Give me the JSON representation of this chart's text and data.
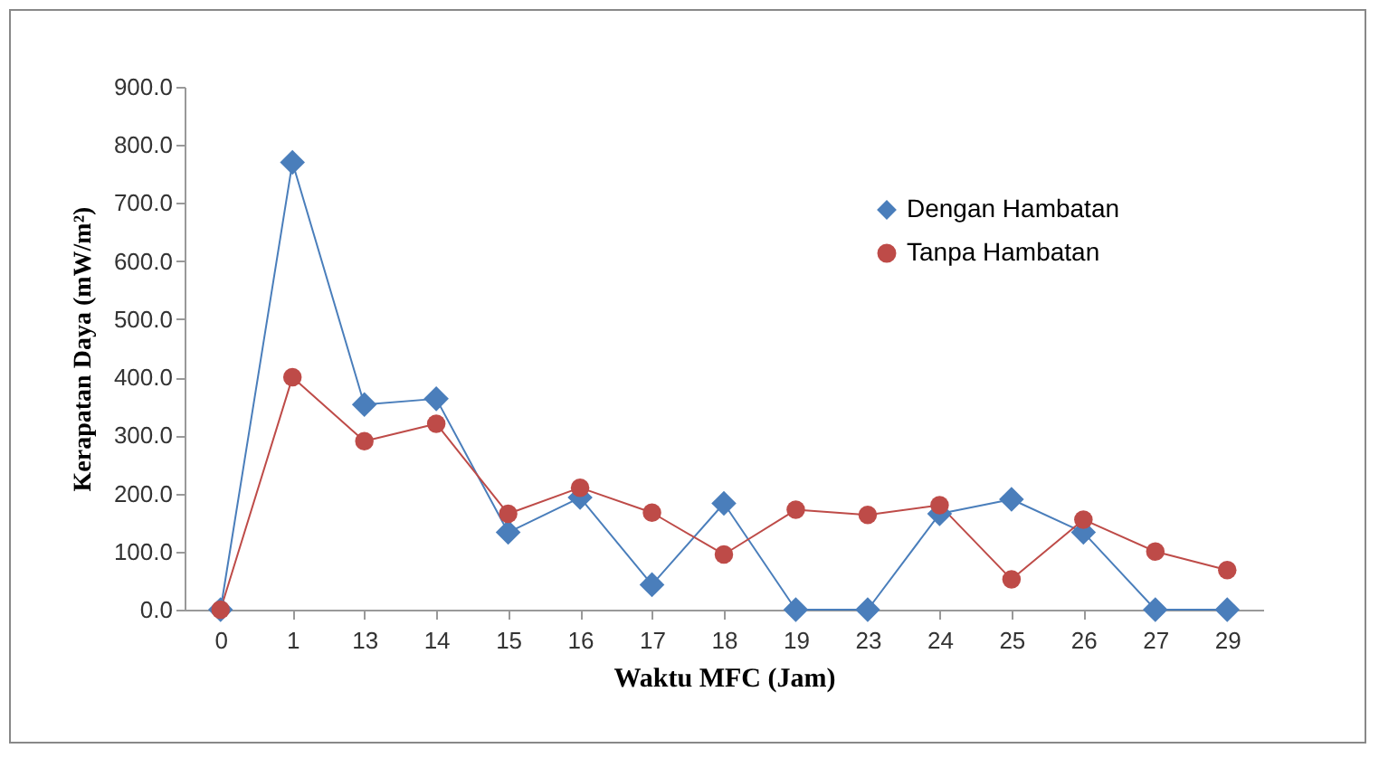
{
  "chart_data": {
    "type": "line",
    "xlabel": "Waktu MFC (Jam)",
    "ylabel": "Kerapatan Daya (mW/m²)",
    "categories": [
      "0",
      "1",
      "13",
      "14",
      "15",
      "16",
      "17",
      "18",
      "19",
      "23",
      "24",
      "25",
      "26",
      "27",
      "29"
    ],
    "series": [
      {
        "name": "Dengan Hambatan",
        "color": "#4a7ebb",
        "marker": "diamond",
        "values": [
          0,
          770,
          353,
          363,
          133,
          193,
          43,
          183,
          0,
          0,
          165,
          190,
          133,
          0,
          0
        ]
      },
      {
        "name": "Tanpa Hambatan",
        "color": "#be4b48",
        "marker": "circle",
        "values": [
          0,
          400,
          290,
          320,
          165,
          210,
          167,
          95,
          172,
          163,
          180,
          52,
          155,
          100,
          68
        ]
      }
    ],
    "ylim": [
      0,
      900
    ],
    "yticks": [
      {
        "value": 0,
        "label": "0.0"
      },
      {
        "value": 100,
        "label": "100.0"
      },
      {
        "value": 200,
        "label": "200.0"
      },
      {
        "value": 300,
        "label": "300.0"
      },
      {
        "value": 400,
        "label": "400.0"
      },
      {
        "value": 500,
        "label": "500.0"
      },
      {
        "value": 600,
        "label": "600.0"
      },
      {
        "value": 700,
        "label": "700.0"
      },
      {
        "value": 800,
        "label": "800.0"
      },
      {
        "value": 900,
        "label": "900.0"
      }
    ],
    "grid": false,
    "legend": "top right",
    "line_style": "solid"
  }
}
